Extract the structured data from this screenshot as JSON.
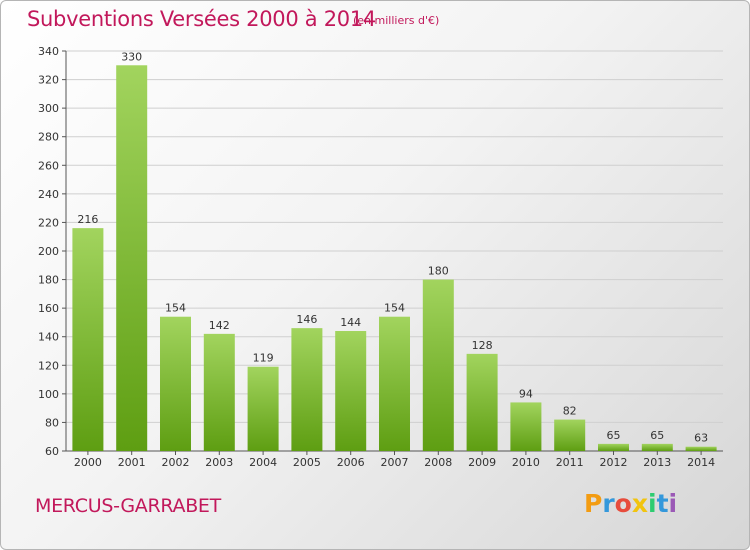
{
  "header": {
    "title": "Subventions Versées 2000 à 2014",
    "unit": "(en milliers d'€)"
  },
  "footer": {
    "commune": "MERCUS-GARRABET",
    "logo": "Proxiti",
    "logo_colors": [
      "#f39c12",
      "#3498db",
      "#e74c3c",
      "#f1c40f",
      "#2ecc71",
      "#3498db",
      "#9b59b6"
    ]
  },
  "colors": {
    "accent": "#c2185b",
    "bar_light": "#a2d45e",
    "bar_dark": "#5e9e12"
  },
  "chart_data": {
    "type": "bar",
    "categories": [
      "2000",
      "2001",
      "2002",
      "2003",
      "2004",
      "2005",
      "2006",
      "2007",
      "2008",
      "2009",
      "2010",
      "2011",
      "2012",
      "2013",
      "2014"
    ],
    "values": [
      216,
      330,
      154,
      142,
      119,
      146,
      144,
      154,
      180,
      128,
      94,
      82,
      65,
      65,
      63
    ],
    "title": "Subventions Versées 2000 à 2014",
    "xlabel": "",
    "ylabel": "",
    "ylim": [
      60,
      340
    ],
    "yticks": [
      60,
      80,
      100,
      120,
      140,
      160,
      180,
      200,
      220,
      240,
      260,
      280,
      300,
      320,
      340
    ],
    "grid": true
  }
}
